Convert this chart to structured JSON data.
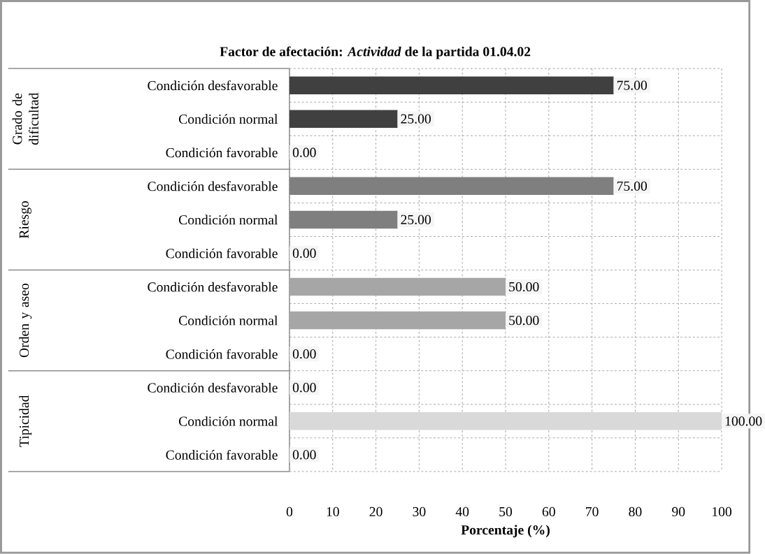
{
  "chart_data": {
    "type": "bar",
    "orientation": "horizontal",
    "title": "Factor de afectación: *Actividad* de la partida 01.04.02",
    "xlabel": "Porcentaje (%)",
    "categories": [
      "Condición desfavorable",
      "Condición normal",
      "Condición favorable",
      "Condición desfavorable",
      "Condición normal",
      "Condición favorable",
      "Condición desfavorable",
      "Condición normal",
      "Condición favorable",
      "Condición desfavorable",
      "Condición normal",
      "Condición favorable"
    ],
    "values": [
      75,
      25,
      0,
      75,
      25,
      0,
      50,
      50,
      0,
      0,
      100,
      0
    ],
    "value_labels": [
      "75.00",
      "25.00",
      "0.00",
      "75.00",
      "25.00",
      "0.00",
      "50.00",
      "50.00",
      "0.00",
      "0.00",
      "100.00",
      "0.00"
    ],
    "colors": [
      "#404040",
      "#404040",
      "#404040",
      "#7f7f7f",
      "#7f7f7f",
      "#7f7f7f",
      "#a6a6a6",
      "#a6a6a6",
      "#a6a6a6",
      "#d9d9d9",
      "#d9d9d9",
      "#d9d9d9"
    ],
    "annotations": [
      "Grado de dificultad",
      "Riesgo",
      "Orden y aseo",
      "Tipicidad"
    ],
    "xlim": [
      0,
      100
    ],
    "xticks": [
      0,
      10,
      20,
      30,
      40,
      50,
      60,
      70,
      80,
      90,
      100
    ],
    "grid": true
  }
}
